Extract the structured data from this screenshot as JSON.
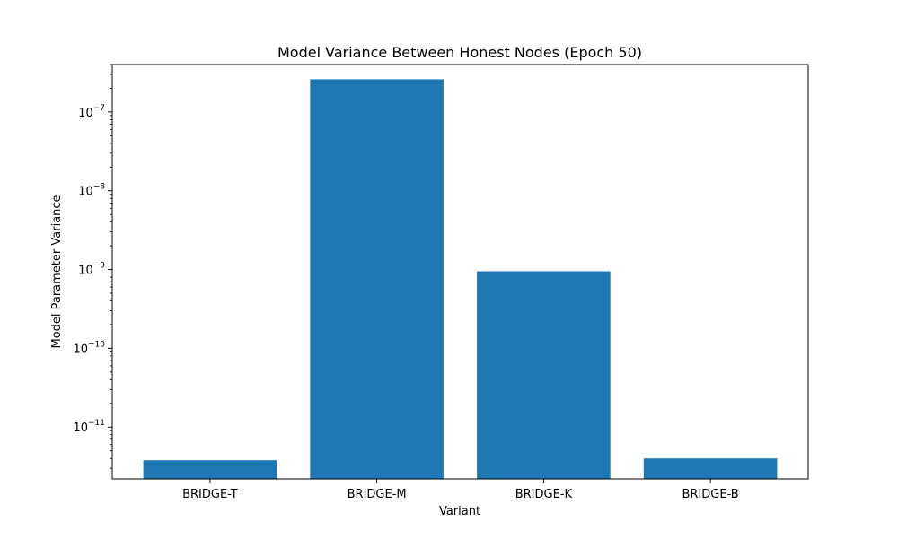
{
  "chart_data": {
    "type": "bar",
    "title": "Model Variance Between Honest Nodes (Epoch 50)",
    "xlabel": "Variant",
    "ylabel": "Model Parameter Variance",
    "yscale": "log",
    "ylim": [
      2.2e-12,
      4e-07
    ],
    "yticks": [
      {
        "value": 1e-11,
        "base": "10",
        "exp": "−11"
      },
      {
        "value": 1e-10,
        "base": "10",
        "exp": "−10"
      },
      {
        "value": 1e-09,
        "base": "10",
        "exp": "−9"
      },
      {
        "value": 1e-08,
        "base": "10",
        "exp": "−8"
      },
      {
        "value": 1e-07,
        "base": "10",
        "exp": "−7"
      }
    ],
    "categories": [
      "BRIDGE-T",
      "BRIDGE-M",
      "BRIDGE-K",
      "BRIDGE-B"
    ],
    "values": [
      3.8e-12,
      2.6e-07,
      9.5e-10,
      4e-12
    ],
    "bar_color": "#1f77b4",
    "grid": false,
    "legend": "none"
  }
}
